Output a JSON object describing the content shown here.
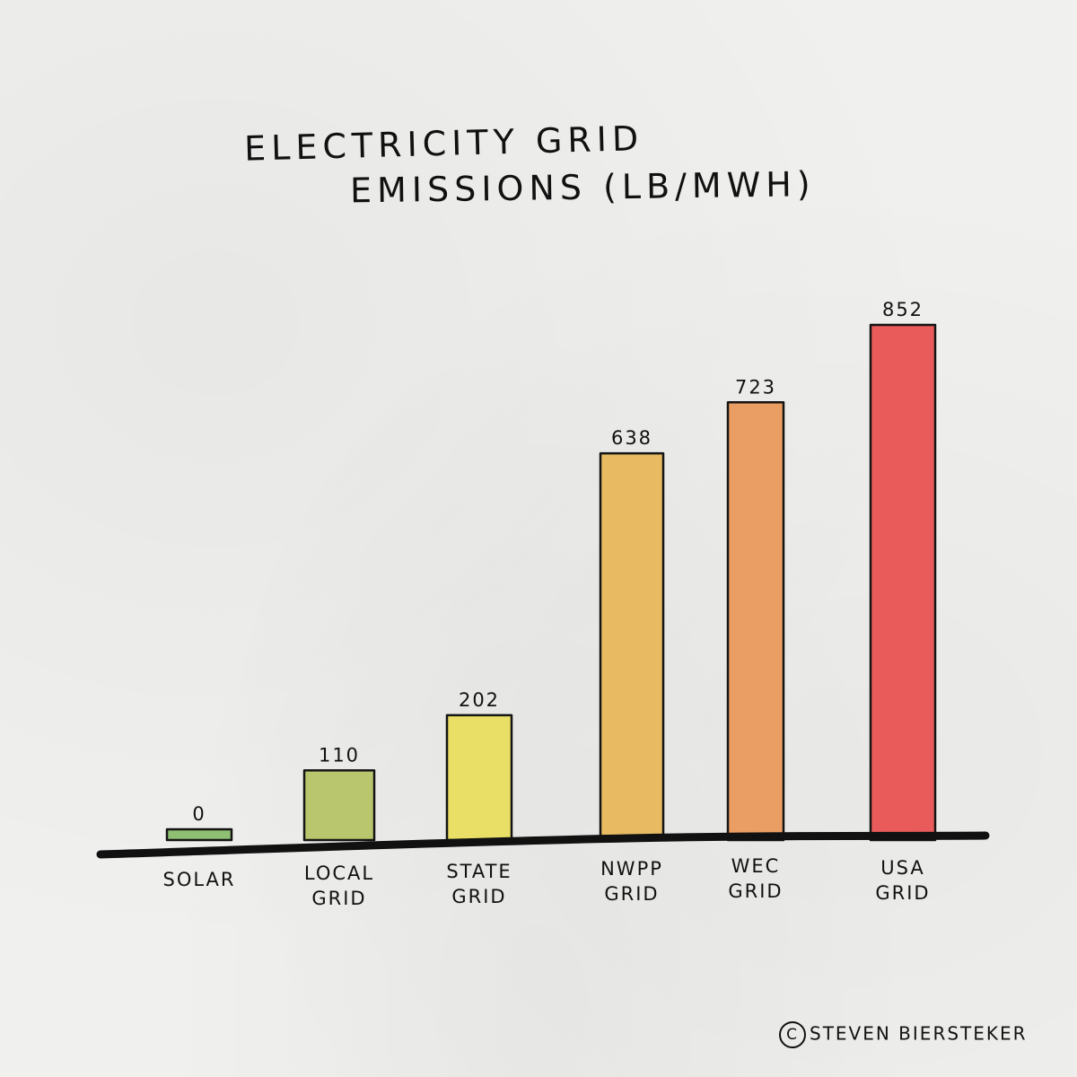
{
  "chart_data": {
    "type": "bar",
    "title_lines": [
      "ELECTRICITY GRID",
      "EMISSIONS (LB/MWH)"
    ],
    "categories": [
      [
        "SOLAR"
      ],
      [
        "LOCAL",
        "GRID"
      ],
      [
        "STATE",
        "GRID"
      ],
      [
        "NWPP",
        "GRID"
      ],
      [
        "WEC",
        "GRID"
      ],
      [
        "USA",
        "GRID"
      ]
    ],
    "values": [
      0,
      110,
      202,
      638,
      723,
      852
    ],
    "value_labels": [
      "0",
      "110",
      "202",
      "638",
      "723",
      "852"
    ],
    "colors": [
      "#8fbf72",
      "#b9c66e",
      "#e9df67",
      "#e8bb63",
      "#eb9e63",
      "#e85b5a"
    ],
    "ylim": [
      0,
      852
    ],
    "grid": false,
    "legend": "none"
  },
  "credit": {
    "symbol": "C",
    "text": "STEVEN BIERSTEKER"
  }
}
